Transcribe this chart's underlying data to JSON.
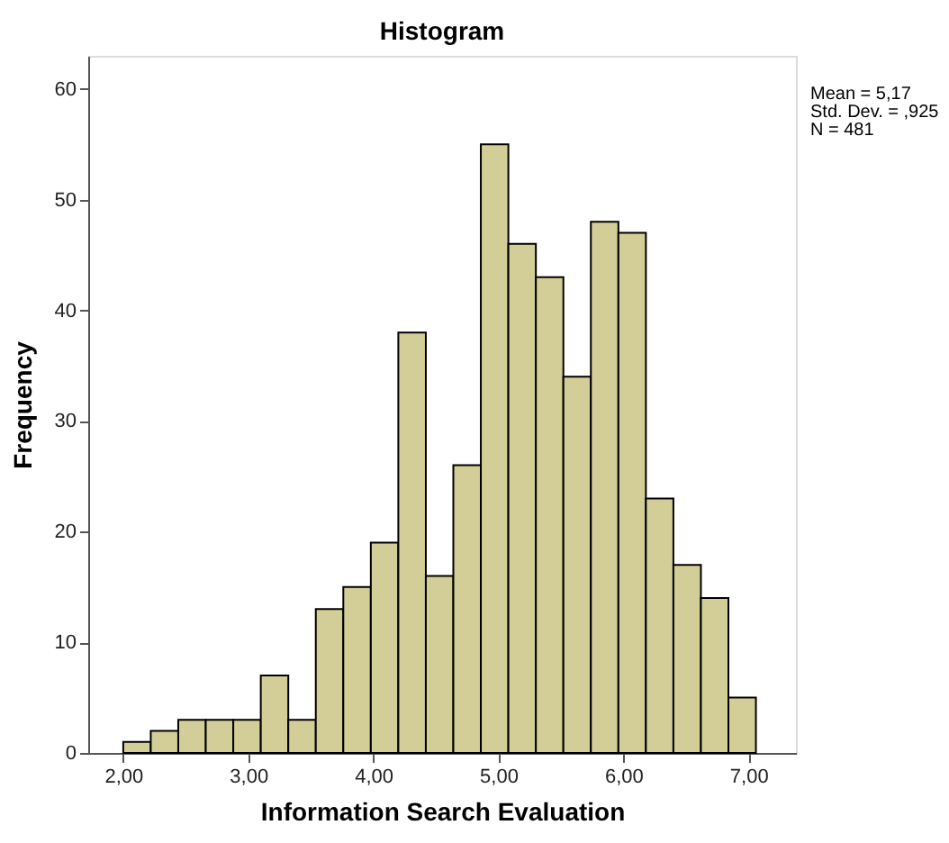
{
  "chart_data": {
    "type": "histogram",
    "title": "Histogram",
    "xlabel": "Information Search Evaluation",
    "ylabel": "Frequency",
    "bins": [
      2.0,
      2.22,
      2.44,
      2.66,
      2.88,
      3.1,
      3.32,
      3.54,
      3.76,
      3.98,
      4.2,
      4.42,
      4.64,
      4.86,
      5.08,
      5.3,
      5.52,
      5.74,
      5.96,
      6.18,
      6.4,
      6.62,
      6.84,
      7.06
    ],
    "values": [
      1,
      2,
      3,
      3,
      3,
      7,
      3,
      13,
      15,
      19,
      38,
      16,
      26,
      55,
      46,
      43,
      34,
      48,
      47,
      23,
      17,
      14,
      5
    ],
    "color": "#d3ce97",
    "xlim": [
      1.72,
      7.38
    ],
    "ylim": [
      0,
      63
    ],
    "xticks": [
      {
        "value": 2,
        "label": "2,00"
      },
      {
        "value": 3,
        "label": "3,00"
      },
      {
        "value": 4,
        "label": "4,00"
      },
      {
        "value": 5,
        "label": "5,00"
      },
      {
        "value": 6,
        "label": "6,00"
      },
      {
        "value": 7,
        "label": "7,00"
      }
    ],
    "yticks": [
      0,
      10,
      20,
      30,
      40,
      50,
      60
    ],
    "grid": false,
    "annotations": [
      "Mean = 5,17",
      "Std. Dev. = ,925",
      "N = 481"
    ]
  }
}
